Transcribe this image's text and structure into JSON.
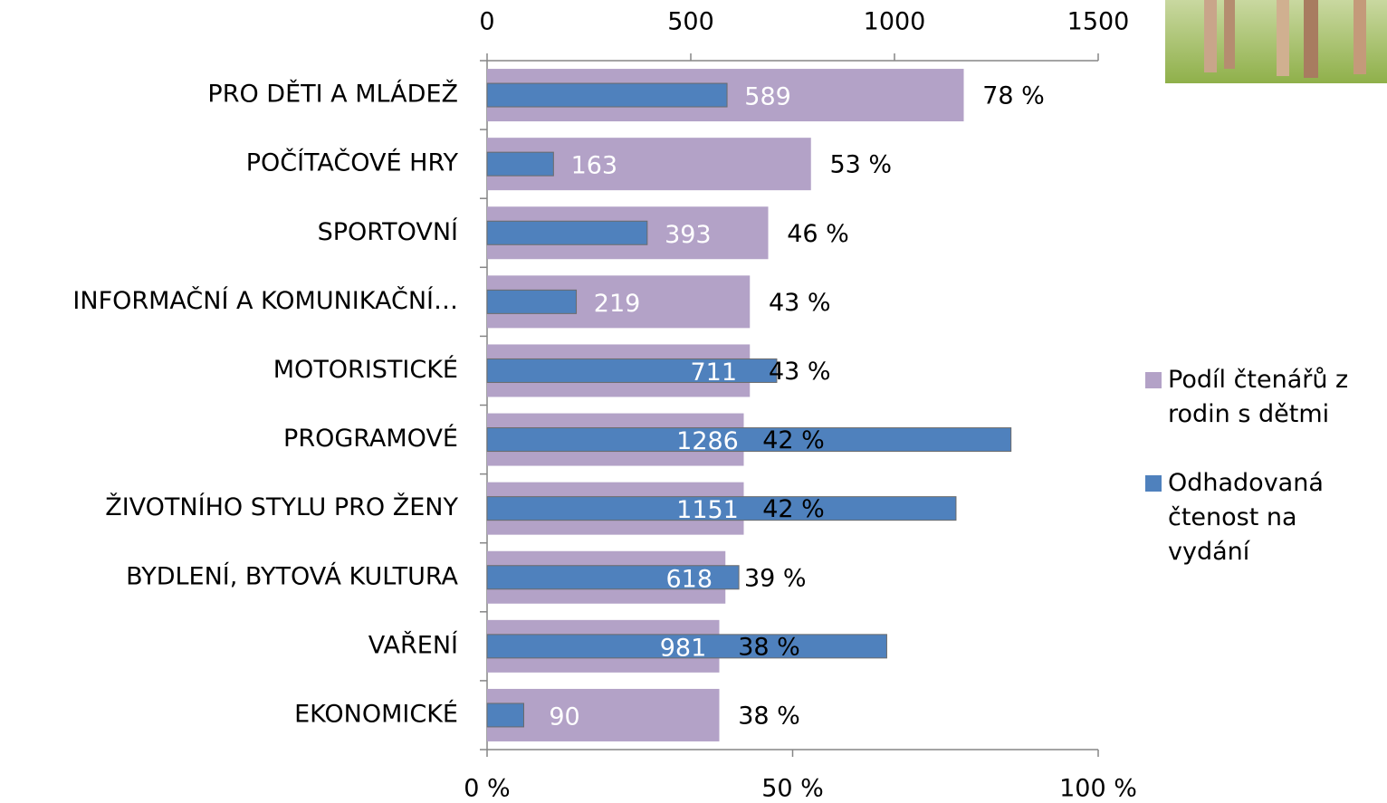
{
  "chart_data": {
    "type": "bar",
    "orientation": "horizontal",
    "categories": [
      "PRO DĚTI A MLÁDEŽ",
      "POČÍTAČOVÉ HRY",
      "SPORTOVNÍ",
      "INFORMAČNÍ A KOMUNIKAČNÍ…",
      "MOTORISTICKÉ",
      "PROGRAMOVÉ",
      "ŽIVOTNÍHO STYLU PRO ŽENY",
      "BYDLENÍ, BYTOVÁ KULTURA",
      "VAŘENÍ",
      "EKONOMICKÉ"
    ],
    "series": [
      {
        "name": "Podíl čtenářů z rodin s dětmi",
        "color": "#b3a2c7",
        "axis": "x",
        "values": [
          78,
          53,
          46,
          43,
          43,
          42,
          42,
          39,
          38,
          38
        ],
        "value_labels": [
          "78 %",
          "53 %",
          "46 %",
          "43 %",
          "43 %",
          "42 %",
          "42 %",
          "39 %",
          "38 %",
          "38 %"
        ]
      },
      {
        "name": "Odhadovaná čtenost na vydání",
        "color": "#4f81bd",
        "axis": "x2",
        "values": [
          589,
          163,
          393,
          219,
          711,
          1286,
          1151,
          618,
          981,
          90
        ]
      }
    ],
    "xlim": [
      0,
      100
    ],
    "xticks": [
      {
        "value": 0,
        "label": "0 %"
      },
      {
        "value": 50,
        "label": "50 %"
      },
      {
        "value": 100,
        "label": "100 %"
      }
    ],
    "x2lim": [
      0,
      1500
    ],
    "x2ticks": [
      0,
      500,
      1000,
      1500
    ],
    "legend": "right"
  }
}
